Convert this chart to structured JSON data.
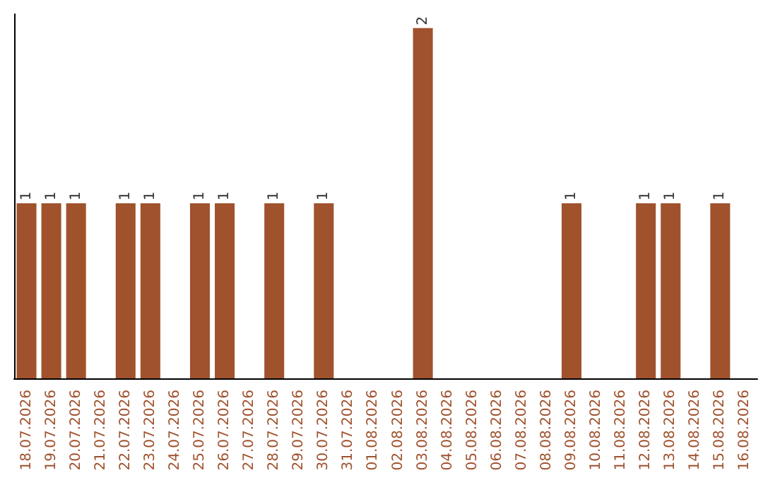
{
  "chart_data": {
    "type": "bar",
    "categories": [
      "18.07.2026",
      "19.07.2026",
      "20.07.2026",
      "21.07.2026",
      "22.07.2026",
      "23.07.2026",
      "24.07.2026",
      "25.07.2026",
      "26.07.2026",
      "27.07.2026",
      "28.07.2026",
      "29.07.2026",
      "30.07.2026",
      "31.07.2026",
      "01.08.2026",
      "02.08.2026",
      "03.08.2026",
      "04.08.2026",
      "05.08.2026",
      "06.08.2026",
      "07.08.2026",
      "08.08.2026",
      "09.08.2026",
      "10.08.2026",
      "11.08.2026",
      "12.08.2026",
      "13.08.2026",
      "14.08.2026",
      "15.08.2026",
      "16.08.2026"
    ],
    "values": [
      1,
      1,
      1,
      null,
      1,
      1,
      null,
      1,
      1,
      null,
      1,
      null,
      1,
      null,
      null,
      null,
      2,
      null,
      null,
      null,
      null,
      null,
      1,
      null,
      null,
      1,
      1,
      null,
      1,
      null
    ],
    "color": "#a0522d",
    "data_labels": true,
    "tick_labels": "x"
  }
}
